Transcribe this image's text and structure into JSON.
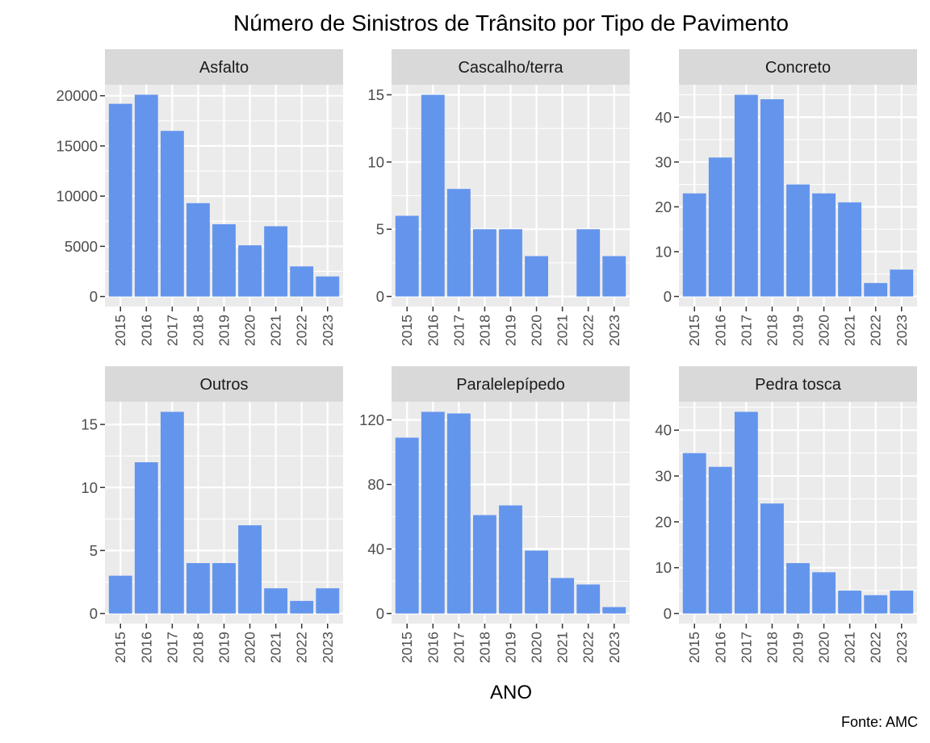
{
  "chart_data": {
    "type": "bar",
    "title": "Número de Sinistros de Trânsito por Tipo de Pavimento",
    "xlabel": "ANO",
    "ylabel": "",
    "caption": "Fonte: AMC",
    "bar_color": "#6495ed",
    "grid": true,
    "categories": [
      "2015",
      "2016",
      "2017",
      "2018",
      "2019",
      "2020",
      "2021",
      "2022",
      "2023"
    ],
    "facets": [
      {
        "name": "Asfalto",
        "values": [
          19200,
          20100,
          16500,
          9300,
          7200,
          5100,
          7000,
          3000,
          2000
        ],
        "ylim": [
          -1000,
          21100
        ],
        "yticks": [
          0,
          5000,
          10000,
          15000,
          20000
        ]
      },
      {
        "name": "Cascalho/terra",
        "values": [
          6,
          15,
          8,
          5,
          5,
          3,
          0,
          5,
          3
        ],
        "ylim": [
          -0.75,
          15.75
        ],
        "yticks": [
          0,
          5,
          10,
          15
        ]
      },
      {
        "name": "Concreto",
        "values": [
          23,
          31,
          45,
          44,
          25,
          23,
          21,
          3,
          6
        ],
        "ylim": [
          -2.25,
          47.25
        ],
        "yticks": [
          0,
          10,
          20,
          30,
          40
        ]
      },
      {
        "name": "Outros",
        "values": [
          3,
          12,
          16,
          4,
          4,
          7,
          2,
          1,
          2
        ],
        "ylim": [
          -0.8,
          16.8
        ],
        "yticks": [
          0,
          5,
          10,
          15
        ]
      },
      {
        "name": "Paralelepípedo",
        "values": [
          109,
          125,
          124,
          61,
          67,
          39,
          22,
          18,
          4
        ],
        "ylim": [
          -6.25,
          131.25
        ],
        "yticks": [
          0,
          40,
          80,
          120
        ]
      },
      {
        "name": "Pedra tosca",
        "values": [
          35,
          32,
          44,
          24,
          11,
          9,
          5,
          4,
          5
        ],
        "ylim": [
          -2.2,
          46.2
        ],
        "yticks": [
          0,
          10,
          20,
          30,
          40
        ]
      }
    ]
  }
}
